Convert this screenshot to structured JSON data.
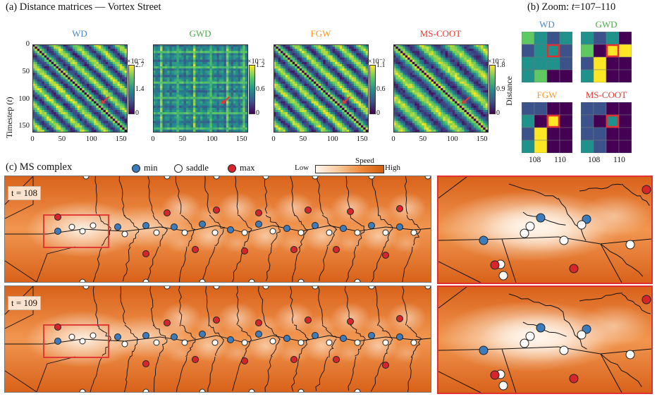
{
  "section_a": {
    "title": "(a) Distance matrices — Vortex Street"
  },
  "section_b": {
    "title_prefix": "(b) Zoom: ",
    "title_var": "t",
    "title_suffix": "=107–110"
  },
  "section_c": {
    "title": "(c) MS complex"
  },
  "matrices": [
    {
      "title": "WD",
      "title_color": "#4a86c5",
      "cb_exp": "×10⁻²",
      "cb_top": "2.7",
      "cb_mid": "1.4",
      "cb_bot": "0"
    },
    {
      "title": "GWD",
      "title_color": "#4daa4d",
      "cb_exp": "×10⁻³",
      "cb_top": "1.2",
      "cb_mid": "0.6",
      "cb_bot": "0"
    },
    {
      "title": "FGW",
      "title_color": "#f59a23",
      "cb_exp": "×10⁻³",
      "cb_top": "1.1",
      "cb_mid": "0.6",
      "cb_bot": "0"
    },
    {
      "title": "MS-COOT",
      "title_color": "#e53935",
      "cb_exp": "×10⁻²",
      "cb_top": "1.8",
      "cb_mid": "0.9",
      "cb_bot": "0"
    }
  ],
  "matrix_axes": {
    "ylabel": "Timestep (",
    "ylabel_var": "t",
    "ylabel_end": ")",
    "xticks": [
      "0",
      "50",
      "100",
      "150"
    ],
    "yticks": [
      "0",
      "50",
      "100",
      "150"
    ],
    "cb_label": "Distance"
  },
  "zoom": {
    "titles": [
      {
        "text": "WD",
        "color": "#4a86c5"
      },
      {
        "text": "GWD",
        "color": "#4daa4d"
      },
      {
        "text": "FGW",
        "color": "#f59a23"
      },
      {
        "text": "MS-COOT",
        "color": "#e53935"
      }
    ],
    "xticks": [
      "108",
      "110"
    ],
    "grids": [
      [
        [
          3,
          2,
          1,
          2
        ],
        [
          1,
          2,
          2,
          1
        ],
        [
          2,
          2,
          2,
          1
        ],
        [
          2,
          3,
          0,
          0
        ]
      ],
      [
        [
          2,
          1,
          2,
          0
        ],
        [
          3,
          0,
          4,
          4
        ],
        [
          1,
          4,
          0,
          0
        ],
        [
          2,
          4,
          0,
          0
        ]
      ],
      [
        [
          1,
          1,
          0,
          0
        ],
        [
          2,
          0,
          4,
          0
        ],
        [
          1,
          4,
          0,
          0
        ],
        [
          2,
          4,
          0,
          0
        ]
      ],
      [
        [
          1,
          1,
          0,
          0
        ],
        [
          1,
          0,
          2,
          0
        ],
        [
          1,
          1,
          0,
          0
        ],
        [
          2,
          1,
          0,
          0
        ]
      ]
    ],
    "palette": [
      "#440154",
      "#3b528b",
      "#21918c",
      "#5ec962",
      "#fde725"
    ]
  },
  "legend": {
    "items": [
      {
        "label": "min",
        "color": "#3c7cbd"
      },
      {
        "label": "saddle",
        "color": "#ffffff"
      },
      {
        "label": "max",
        "color": "#d6262b"
      }
    ],
    "speed_title": "Speed",
    "low": "Low",
    "high": "High"
  },
  "ms_panels": [
    {
      "tlabel": "t = 108"
    },
    {
      "tlabel": "t = 109"
    }
  ],
  "colors": {
    "highlight_red": "#e03030",
    "arrow_red": "#e53935"
  }
}
